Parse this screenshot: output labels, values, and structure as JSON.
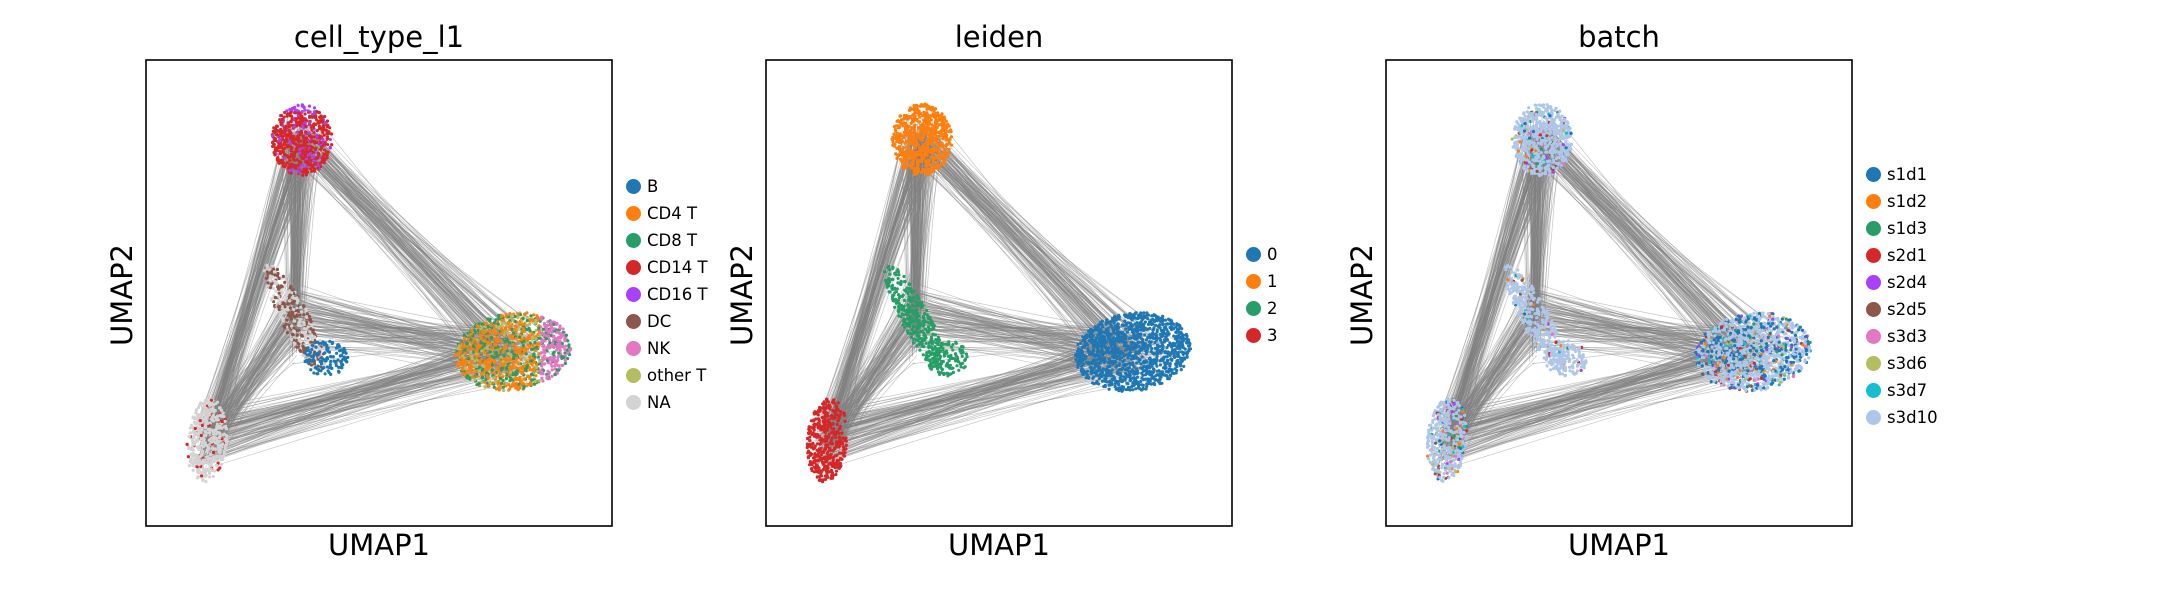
{
  "chart_data": [
    {
      "type": "scatter",
      "title": "cell_type_l1",
      "xlabel": "UMAP1",
      "ylabel": "UMAP2",
      "grid": false,
      "legend_position": "right",
      "legend": [
        {
          "label": "B",
          "color": "#1f77b4"
        },
        {
          "label": "CD4 T",
          "color": "#ff7f0e"
        },
        {
          "label": "CD8 T",
          "color": "#279e68"
        },
        {
          "label": "CD14 T",
          "color": "#d62728"
        },
        {
          "label": "CD16 T",
          "color": "#aa40fc"
        },
        {
          "label": "DC",
          "color": "#8c564b"
        },
        {
          "label": "NK",
          "color": "#e377c2"
        },
        {
          "label": "other T",
          "color": "#b5bd61"
        },
        {
          "label": "NA",
          "color": "#d3d3d3"
        }
      ]
    },
    {
      "type": "scatter",
      "title": "leiden",
      "xlabel": "UMAP1",
      "ylabel": "UMAP2",
      "grid": false,
      "legend_position": "right",
      "legend": [
        {
          "label": "0",
          "color": "#1f77b4"
        },
        {
          "label": "1",
          "color": "#ff7f0e"
        },
        {
          "label": "2",
          "color": "#279e68"
        },
        {
          "label": "3",
          "color": "#d62728"
        }
      ]
    },
    {
      "type": "scatter",
      "title": "batch",
      "xlabel": "UMAP1",
      "ylabel": "UMAP2",
      "grid": false,
      "legend_position": "right",
      "legend": [
        {
          "label": "s1d1",
          "color": "#1f77b4"
        },
        {
          "label": "s1d2",
          "color": "#ff7f0e"
        },
        {
          "label": "s1d3",
          "color": "#279e68"
        },
        {
          "label": "s2d1",
          "color": "#d62728"
        },
        {
          "label": "s2d4",
          "color": "#aa40fc"
        },
        {
          "label": "s2d5",
          "color": "#8c564b"
        },
        {
          "label": "s3d3",
          "color": "#e377c2"
        },
        {
          "label": "s3d6",
          "color": "#b5bd61"
        },
        {
          "label": "s3d7",
          "color": "#17becf"
        },
        {
          "label": "s3d10",
          "color": "#aec7e8"
        }
      ]
    }
  ],
  "edge_color": "#808080"
}
